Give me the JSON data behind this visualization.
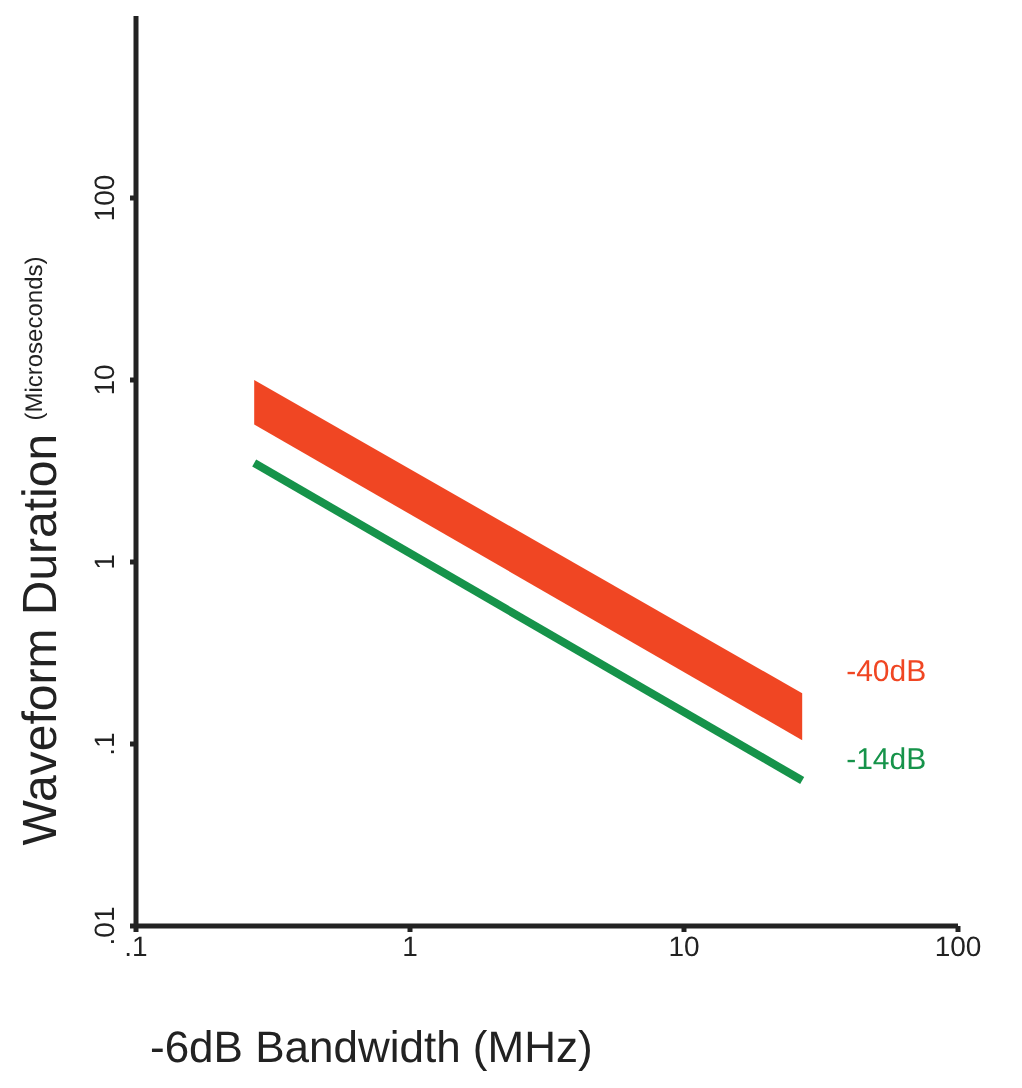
{
  "chart_data": {
    "type": "line",
    "xlabel": "-6dB Bandwidth (MHz)",
    "ylabel": "Waveform Duration $^{(Microseconds)}$",
    "log": "xy",
    "grid": false,
    "legend": false,
    "x": [
      0.27,
      27
    ],
    "xlim": [
      0.1,
      100
    ],
    "xticks": [
      {
        "value": 0.1,
        "label": ".1"
      },
      1,
      10,
      100
    ],
    "ylim": [
      0.01,
      1000
    ],
    "yticks": [
      {
        "value": 0.01,
        "label": ".01"
      },
      {
        "value": 0.1,
        "label": ".1"
      },
      1,
      10,
      100
    ],
    "series": [
      {
        "name": "-40dB",
        "color": "#f04623",
        "values": [
          null,
          null
        ],
        "lower": [
          5.7,
          0.105
        ],
        "upper": [
          10,
          0.19
        ]
      },
      {
        "name": "-14dB",
        "color": "#16934a",
        "values": [
          3.5,
          0.063
        ]
      }
    ]
  }
}
